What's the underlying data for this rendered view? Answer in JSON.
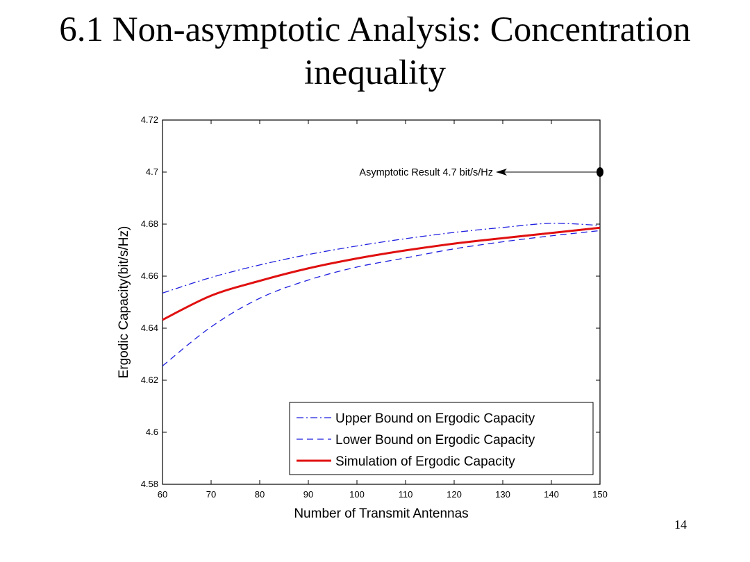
{
  "slide": {
    "title_line1": "6.1  Non-asymptotic Analysis: Concentration",
    "title_line2": "inequality",
    "page_number": "14"
  },
  "chart_data": {
    "type": "line",
    "xlabel": "Number of Transmit Antennas",
    "ylabel": "Ergodic Capacity(bit/s/Hz)",
    "xlim": [
      60,
      150
    ],
    "ylim": [
      4.58,
      4.72
    ],
    "xticks": [
      60,
      70,
      80,
      90,
      100,
      110,
      120,
      130,
      140,
      150
    ],
    "xtick_labels": [
      "60",
      "70",
      "80",
      "90",
      "100",
      "110",
      "120",
      "130",
      "140",
      "150"
    ],
    "yticks": [
      4.58,
      4.6,
      4.62,
      4.64,
      4.66,
      4.68,
      4.7,
      4.72
    ],
    "ytick_labels": [
      "4.58",
      "4.6",
      "4.62",
      "4.64",
      "4.66",
      "4.68",
      "4.7",
      "4.72"
    ],
    "grid": false,
    "legend_position": "bottom-right",
    "x": [
      60,
      70,
      80,
      90,
      100,
      110,
      120,
      130,
      140,
      150
    ],
    "series": [
      {
        "name": "Upper Bound on Ergodic Capacity",
        "style": "dashdot",
        "color": "#1f1fe0",
        "values": [
          4.6535,
          4.6595,
          4.6643,
          4.6683,
          4.6716,
          4.6744,
          4.6768,
          4.6787,
          4.6803,
          4.6795
        ]
      },
      {
        "name": "Lower Bound on Ergodic Capacity",
        "style": "dashed",
        "color": "#1f1fe0",
        "values": [
          4.6255,
          4.6405,
          4.6515,
          4.6585,
          4.6635,
          4.667,
          4.6705,
          4.6732,
          4.6755,
          4.6775
        ]
      },
      {
        "name": "Simulation of Ergodic Capacity",
        "style": "solid",
        "color": "#e01010",
        "values": [
          4.6432,
          4.6525,
          4.6582,
          4.663,
          4.6668,
          4.6699,
          4.6725,
          4.6746,
          4.6766,
          4.6786
        ]
      }
    ],
    "annotation": {
      "text": "Asymptotic Result 4.7 bit/s/Hz",
      "point": [
        150,
        4.7
      ]
    }
  }
}
